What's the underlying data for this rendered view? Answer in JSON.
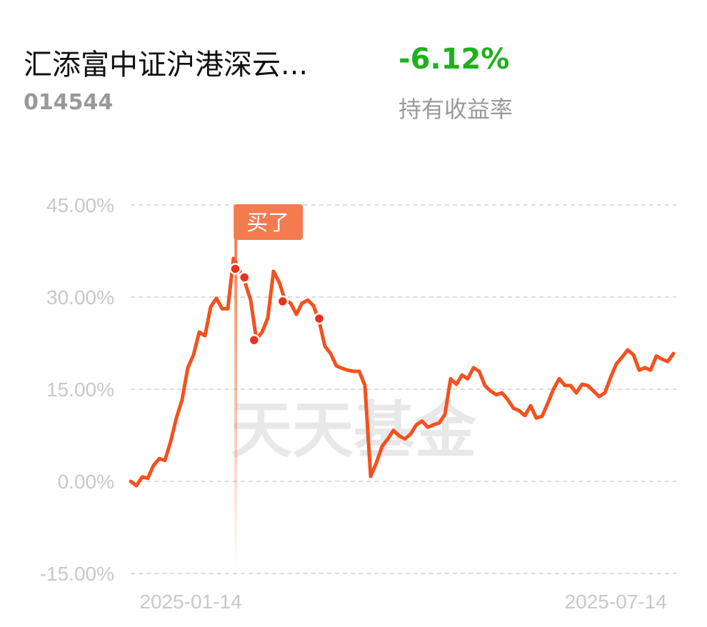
{
  "header": {
    "fund_name": "汇添富中证沪港深云...",
    "fund_code": "014544",
    "return_value": "-6.12%",
    "return_label": "持有收益率"
  },
  "chart_data": {
    "type": "line",
    "watermark": "天天基金",
    "xlim": [
      0,
      95
    ],
    "xticks": [
      {
        "value": 10.5,
        "label": "2025-01-14"
      },
      {
        "value": 84.9,
        "label": "2025-07-14"
      }
    ],
    "ylim": [
      -15,
      45
    ],
    "yticks": [
      {
        "value": 45,
        "label": "45.00%"
      },
      {
        "value": 30,
        "label": "30.00%"
      },
      {
        "value": 15,
        "label": "15.00%"
      },
      {
        "value": 0,
        "label": "0.00%"
      },
      {
        "value": -15,
        "label": "-15.00%"
      }
    ],
    "grid": true,
    "series": [
      {
        "color": "#f4511e",
        "values": [
          0,
          -0.7,
          0.7,
          0.5,
          2.6,
          3.7,
          3.4,
          6.5,
          10.3,
          13.3,
          18.5,
          20.6,
          24.3,
          23.7,
          28.4,
          29.8,
          28.1,
          28.1,
          36.3,
          34.4,
          32.4,
          29.5,
          23.1,
          24.3,
          26.6,
          34.2,
          32.4,
          29.5,
          29.0,
          27.2,
          29.0,
          29.5,
          28.6,
          26.0,
          22.0,
          20.8,
          18.8,
          18.4,
          18.1,
          17.9,
          17.9,
          15.6,
          0.8,
          3.0,
          5.7,
          6.9,
          8.3,
          7.4,
          6.9,
          7.7,
          9.2,
          9.8,
          8.8,
          9.2,
          9.5,
          10.9,
          16.7,
          15.8,
          17.3,
          16.7,
          18.5,
          17.9,
          15.6,
          14.7,
          14.1,
          14.4,
          13.3,
          11.9,
          11.5,
          10.7,
          12.3,
          10.3,
          10.6,
          12.7,
          15.0,
          16.7,
          15.6,
          15.6,
          14.4,
          15.8,
          15.6,
          14.7,
          13.8,
          14.4,
          16.9,
          19.1,
          20.2,
          21.4,
          20.6,
          18.1,
          18.5,
          18.1,
          20.4,
          19.9,
          19.5,
          20.8
        ]
      }
    ],
    "trade_points": {
      "color": "#e8321a",
      "x": [
        18.3,
        19.9,
        21.6,
        26.6,
        33
      ],
      "values": [
        34.6,
        33.2,
        23.0,
        29.3,
        26.5
      ]
    },
    "annotation": {
      "text": "买了",
      "x": 18.4,
      "color": "#f47a50"
    }
  }
}
